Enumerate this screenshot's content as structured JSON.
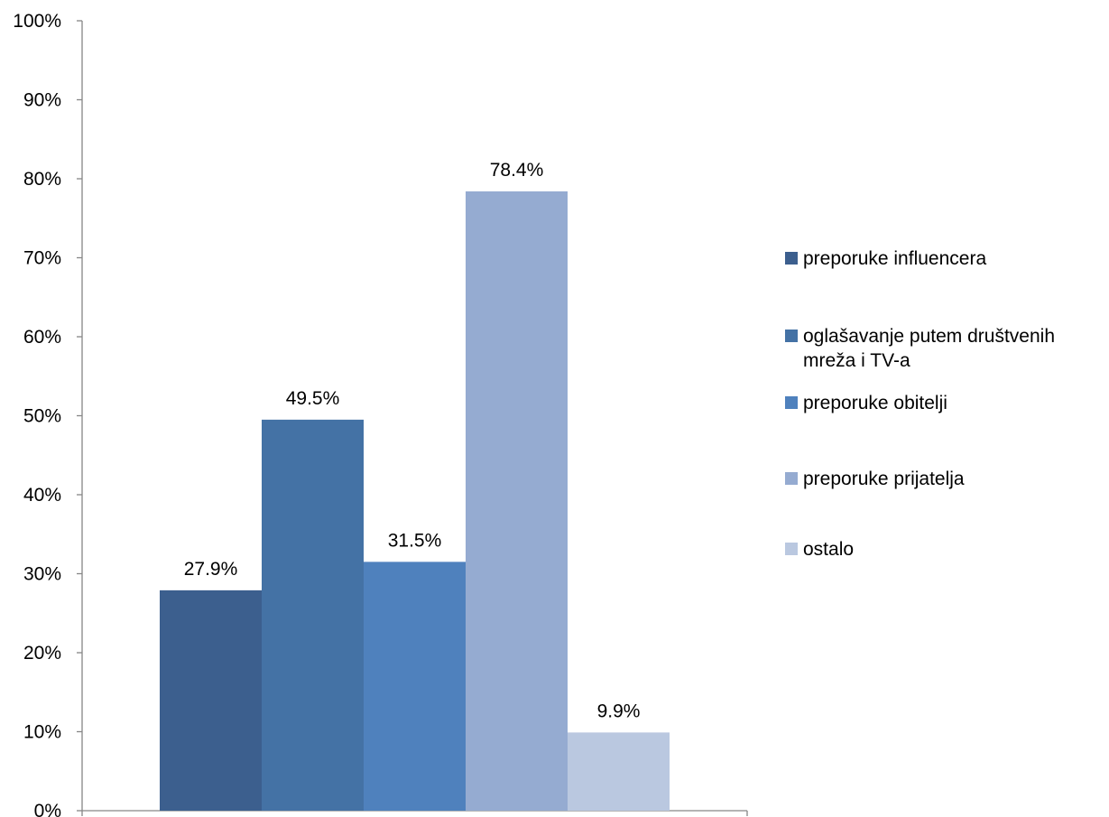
{
  "chart_data": {
    "type": "bar",
    "title": "",
    "xlabel": "",
    "ylabel": "",
    "ylim": [
      0,
      100
    ],
    "yticks": [
      "0%",
      "10%",
      "20%",
      "30%",
      "40%",
      "50%",
      "60%",
      "70%",
      "80%",
      "90%",
      "100%"
    ],
    "grid": false,
    "legend_position": "right",
    "series": [
      {
        "name": "preporuke influencera",
        "value": 27.9,
        "label": "27.9%",
        "color": "#3C5F8E"
      },
      {
        "name": "oglašavanje putem društvenih mreža i TV-a",
        "name_lines": [
          "oglašavanje putem društvenih",
          "mreža i TV-a"
        ],
        "value": 49.5,
        "label": "49.5%",
        "color": "#4472A5"
      },
      {
        "name": "preporuke obitelji",
        "value": 31.5,
        "label": "31.5%",
        "color": "#4F81BD"
      },
      {
        "name": "preporuke prijatelja",
        "value": 78.4,
        "label": "78.4%",
        "color": "#95ABD1"
      },
      {
        "name": "ostalo",
        "value": 9.9,
        "label": "9.9%",
        "color": "#BAC8E0"
      }
    ]
  }
}
